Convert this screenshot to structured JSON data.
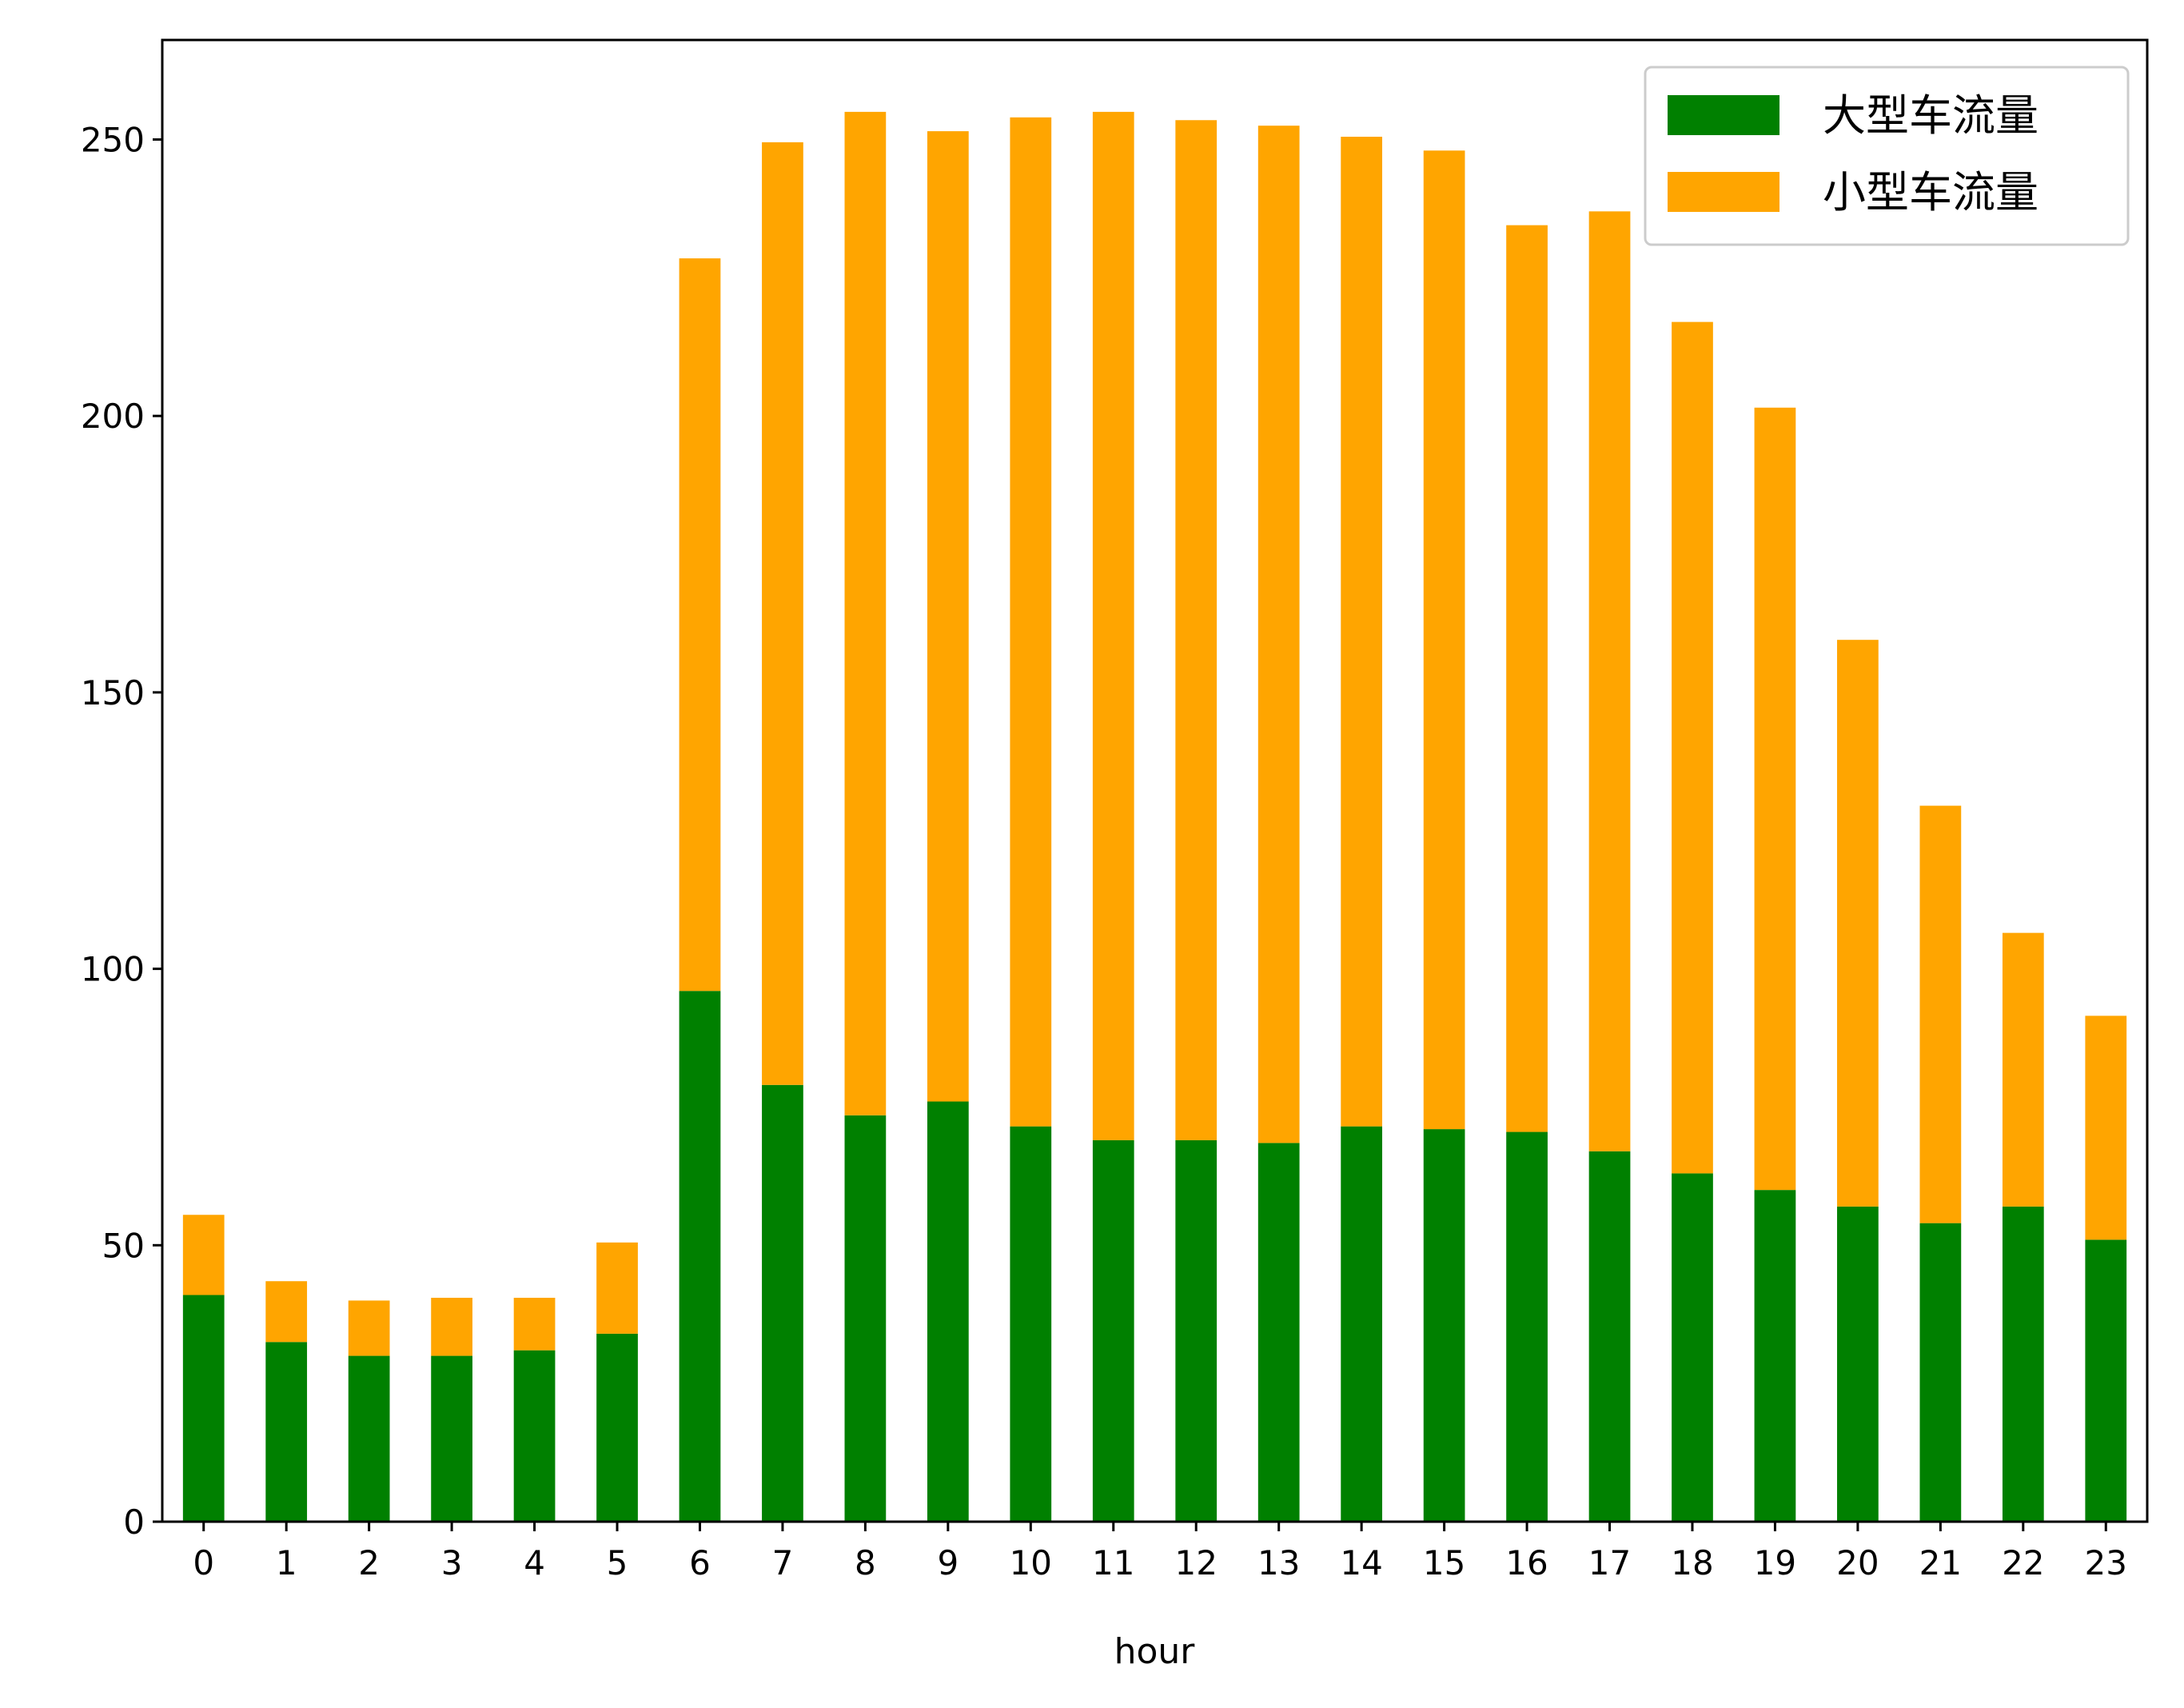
{
  "chart_data": {
    "type": "bar",
    "stacked": true,
    "title": "",
    "xlabel": "hour",
    "ylabel": "",
    "ylim": [
      0,
      268
    ],
    "yticks": [
      0,
      50,
      100,
      150,
      200,
      250
    ],
    "categories": [
      "0",
      "1",
      "2",
      "3",
      "4",
      "5",
      "6",
      "7",
      "8",
      "9",
      "10",
      "11",
      "12",
      "13",
      "14",
      "15",
      "16",
      "17",
      "18",
      "19",
      "20",
      "21",
      "22",
      "23"
    ],
    "series": [
      {
        "name": "大型车流量",
        "color": "#008000",
        "values": [
          41,
          32.5,
          30,
          30,
          31,
          34,
          96,
          79,
          73.5,
          76,
          71.5,
          69,
          69,
          68.5,
          71.5,
          71,
          70.5,
          67,
          63,
          60,
          57,
          54,
          57,
          51
        ]
      },
      {
        "name": "小型车流量",
        "color": "#FFA500",
        "values": [
          14.5,
          11,
          10,
          10.5,
          9.5,
          16.5,
          132.5,
          170.5,
          181.5,
          175.5,
          182.5,
          186,
          184.5,
          184,
          179,
          177,
          164,
          170,
          154,
          141.5,
          102.5,
          75.5,
          49.5,
          40.5
        ]
      }
    ],
    "grid": false,
    "legend_position": "top-right"
  }
}
